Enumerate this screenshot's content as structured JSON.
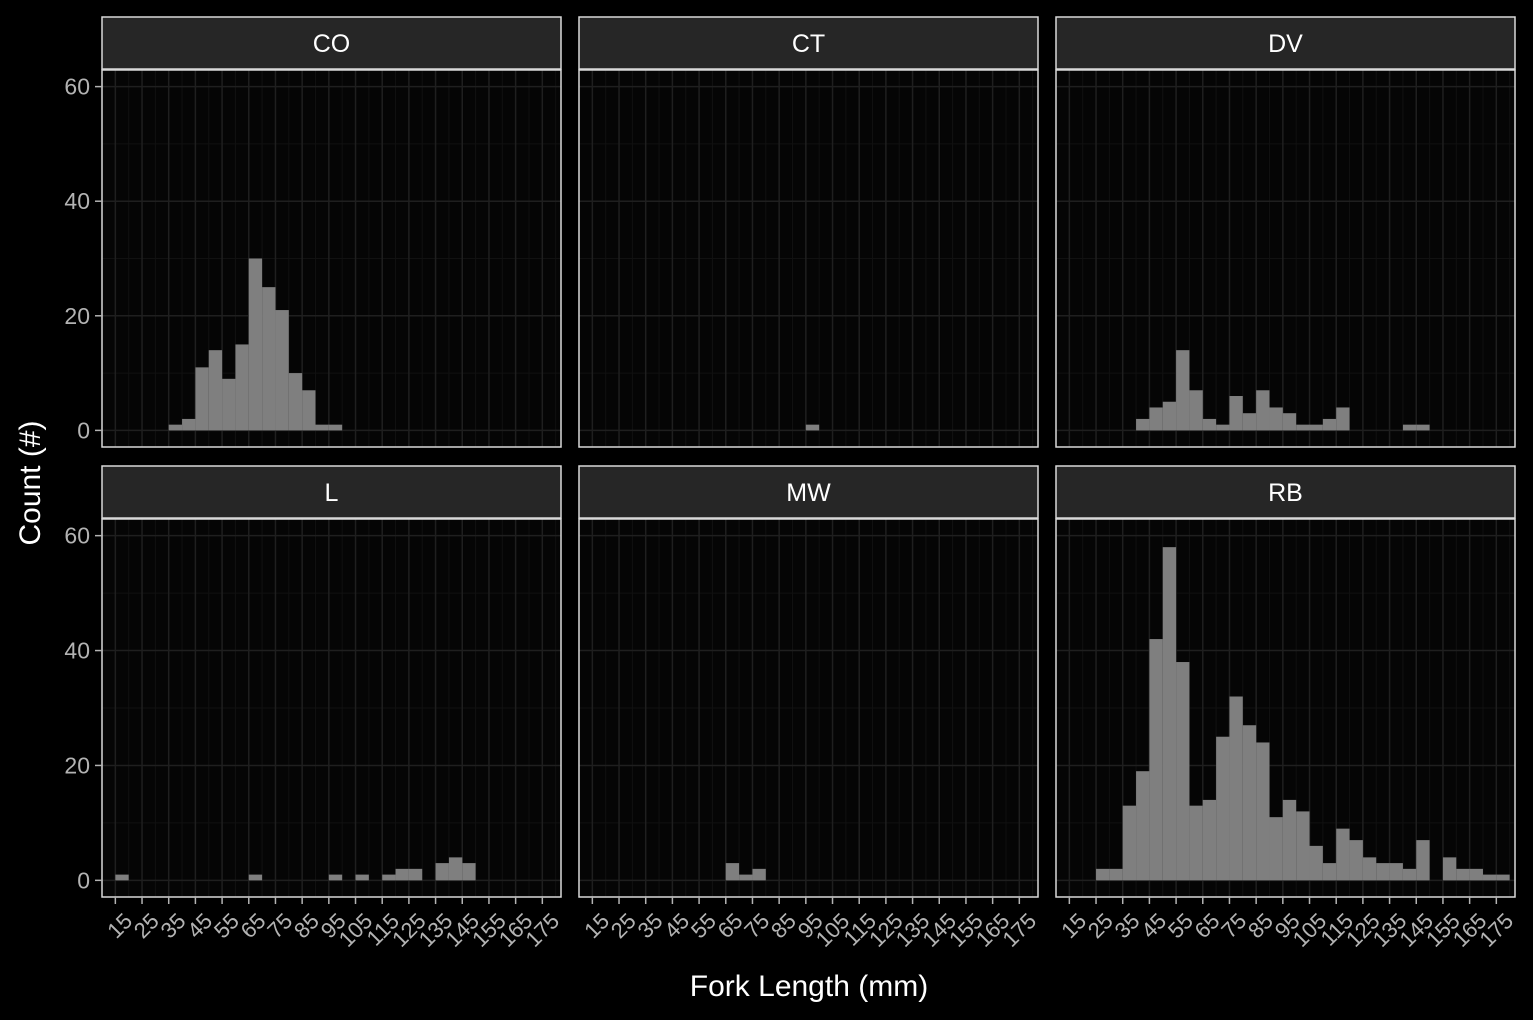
{
  "chart_data": {
    "type": "bar",
    "xlabel": "Fork Length (mm)",
    "ylabel": "Count (#)",
    "ylim": [
      -2.9,
      60
    ],
    "yticks": [
      0,
      20,
      40,
      60
    ],
    "xlim": [
      10,
      182
    ],
    "xtick_labels": [
      "15",
      "25",
      "35",
      "45",
      "55",
      "65",
      "75",
      "85",
      "95",
      "105",
      "115",
      "125",
      "135",
      "145",
      "155",
      "165",
      "175"
    ],
    "bin_width": 5,
    "grid": true,
    "panels": [
      {
        "name": "CO",
        "bins": [
          {
            "x": 37.5,
            "count": 1
          },
          {
            "x": 42.5,
            "count": 2
          },
          {
            "x": 47.5,
            "count": 11
          },
          {
            "x": 52.5,
            "count": 14
          },
          {
            "x": 57.5,
            "count": 9
          },
          {
            "x": 62.5,
            "count": 15
          },
          {
            "x": 67.5,
            "count": 30
          },
          {
            "x": 72.5,
            "count": 25
          },
          {
            "x": 77.5,
            "count": 21
          },
          {
            "x": 82.5,
            "count": 10
          },
          {
            "x": 87.5,
            "count": 7
          },
          {
            "x": 92.5,
            "count": 1
          },
          {
            "x": 97.5,
            "count": 1
          }
        ]
      },
      {
        "name": "CT",
        "bins": [
          {
            "x": 97.5,
            "count": 1
          }
        ]
      },
      {
        "name": "DV",
        "bins": [
          {
            "x": 42.5,
            "count": 2
          },
          {
            "x": 47.5,
            "count": 4
          },
          {
            "x": 52.5,
            "count": 5
          },
          {
            "x": 57.5,
            "count": 14
          },
          {
            "x": 62.5,
            "count": 7
          },
          {
            "x": 67.5,
            "count": 2
          },
          {
            "x": 72.5,
            "count": 1
          },
          {
            "x": 77.5,
            "count": 6
          },
          {
            "x": 82.5,
            "count": 3
          },
          {
            "x": 87.5,
            "count": 7
          },
          {
            "x": 92.5,
            "count": 4
          },
          {
            "x": 97.5,
            "count": 3
          },
          {
            "x": 102.5,
            "count": 1
          },
          {
            "x": 107.5,
            "count": 1
          },
          {
            "x": 112.5,
            "count": 2
          },
          {
            "x": 117.5,
            "count": 4
          },
          {
            "x": 142.5,
            "count": 1
          },
          {
            "x": 147.5,
            "count": 1
          }
        ]
      },
      {
        "name": "L",
        "bins": [
          {
            "x": 17.5,
            "count": 1
          },
          {
            "x": 67.5,
            "count": 1
          },
          {
            "x": 97.5,
            "count": 1
          },
          {
            "x": 107.5,
            "count": 1
          },
          {
            "x": 117.5,
            "count": 1
          },
          {
            "x": 122.5,
            "count": 2
          },
          {
            "x": 127.5,
            "count": 2
          },
          {
            "x": 137.5,
            "count": 3
          },
          {
            "x": 142.5,
            "count": 4
          },
          {
            "x": 147.5,
            "count": 3
          }
        ]
      },
      {
        "name": "MW",
        "bins": [
          {
            "x": 67.5,
            "count": 3
          },
          {
            "x": 72.5,
            "count": 1
          },
          {
            "x": 77.5,
            "count": 2
          }
        ]
      },
      {
        "name": "RB",
        "bins": [
          {
            "x": 27.5,
            "count": 2
          },
          {
            "x": 32.5,
            "count": 2
          },
          {
            "x": 37.5,
            "count": 13
          },
          {
            "x": 42.5,
            "count": 19
          },
          {
            "x": 47.5,
            "count": 42
          },
          {
            "x": 52.5,
            "count": 58
          },
          {
            "x": 57.5,
            "count": 38
          },
          {
            "x": 62.5,
            "count": 13
          },
          {
            "x": 67.5,
            "count": 14
          },
          {
            "x": 72.5,
            "count": 25
          },
          {
            "x": 77.5,
            "count": 32
          },
          {
            "x": 82.5,
            "count": 27
          },
          {
            "x": 87.5,
            "count": 24
          },
          {
            "x": 92.5,
            "count": 11
          },
          {
            "x": 97.5,
            "count": 14
          },
          {
            "x": 102.5,
            "count": 12
          },
          {
            "x": 107.5,
            "count": 6
          },
          {
            "x": 112.5,
            "count": 3
          },
          {
            "x": 117.5,
            "count": 9
          },
          {
            "x": 122.5,
            "count": 7
          },
          {
            "x": 127.5,
            "count": 4
          },
          {
            "x": 132.5,
            "count": 3
          },
          {
            "x": 137.5,
            "count": 3
          },
          {
            "x": 142.5,
            "count": 2
          },
          {
            "x": 147.5,
            "count": 7
          },
          {
            "x": 157.5,
            "count": 4
          },
          {
            "x": 162.5,
            "count": 2
          },
          {
            "x": 167.5,
            "count": 2
          },
          {
            "x": 172.5,
            "count": 1
          },
          {
            "x": 177.5,
            "count": 1
          }
        ]
      }
    ],
    "colors": {
      "background": "#000000",
      "panel_background": "#050505",
      "strip_background": "#262626",
      "border": "#d9d9d9",
      "grid_major": "#1f1f1f",
      "grid_minor": "#111111",
      "bar": "#7f7f7f",
      "axis_text": "#b3b3b3",
      "title_text": "#ffffff"
    }
  }
}
